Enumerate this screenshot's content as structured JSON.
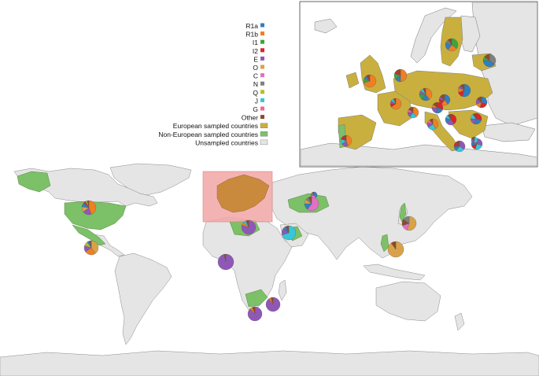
{
  "legend": {
    "haplogroups": [
      {
        "label": "R1a",
        "color": "#2f7fc1"
      },
      {
        "label": "R1b",
        "color": "#f07f22"
      },
      {
        "label": "I1",
        "color": "#3aa63a"
      },
      {
        "label": "I2",
        "color": "#d7262b"
      },
      {
        "label": "E",
        "color": "#8f58b6"
      },
      {
        "label": "O",
        "color": "#d9a24a"
      },
      {
        "label": "C",
        "color": "#e36fc8"
      },
      {
        "label": "N",
        "color": "#7f7f7f"
      },
      {
        "label": "Q",
        "color": "#bcbd22"
      },
      {
        "label": "J",
        "color": "#34c8d8"
      },
      {
        "label": "G",
        "color": "#ef6a8a"
      },
      {
        "label": "Other",
        "color": "#8c4b2b"
      }
    ],
    "country_categories": [
      {
        "label": "European sampled countries",
        "color": "#c9b03e"
      },
      {
        "label": "Non-European sampled countries",
        "color": "#7cc067"
      },
      {
        "label": "Unsampled countries",
        "color": "#e5e5e5"
      }
    ]
  },
  "colors": {
    "land": "#e5e5e5",
    "border": "#8a8a8a",
    "ocean": "#ffffff",
    "highlight": "#f2a6a6",
    "inset_border": "#555555"
  }
}
